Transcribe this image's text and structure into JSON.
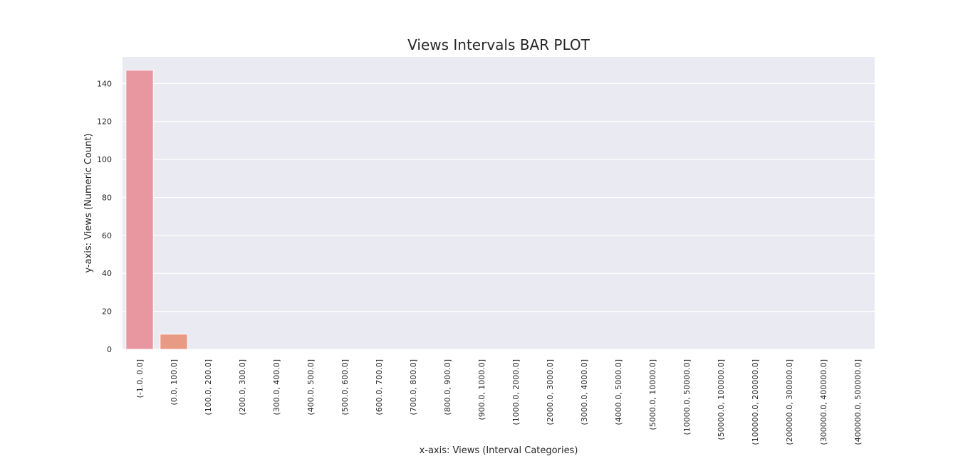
{
  "chart_data": {
    "type": "bar",
    "title": "Views Intervals BAR PLOT",
    "xlabel": "x-axis: Views (Interval Categories)",
    "ylabel": "y-axis: Views (Numeric Count)",
    "categories": [
      "(-1.0, 0.0]",
      "(0.0, 100.0]",
      "(100.0, 200.0]",
      "(200.0, 300.0]",
      "(300.0, 400.0]",
      "(400.0, 500.0]",
      "(500.0, 600.0]",
      "(600.0, 700.0]",
      "(700.0, 800.0]",
      "(800.0, 900.0]",
      "(900.0, 1000.0]",
      "(1000.0, 2000.0]",
      "(2000.0, 3000.0]",
      "(3000.0, 4000.0]",
      "(4000.0, 5000.0]",
      "(5000.0, 10000.0]",
      "(10000.0, 50000.0]",
      "(50000.0, 100000.0]",
      "(100000.0, 200000.0]",
      "(200000.0, 300000.0]",
      "(300000.0, 400000.0]",
      "(400000.0, 500000.0]"
    ],
    "values": [
      147,
      8,
      0,
      0,
      0,
      0,
      0,
      0,
      0,
      0,
      0,
      0,
      0,
      0,
      0,
      0,
      0,
      0,
      0,
      0,
      0,
      0
    ],
    "ylim": [
      0,
      154
    ],
    "yticks": [
      0,
      20,
      40,
      60,
      80,
      100,
      120,
      140
    ],
    "grid": true,
    "colors": {
      "background": "#eaeaf2",
      "grid": "#ffffff",
      "bars": [
        "#e8969f",
        "#e99a85"
      ]
    }
  }
}
